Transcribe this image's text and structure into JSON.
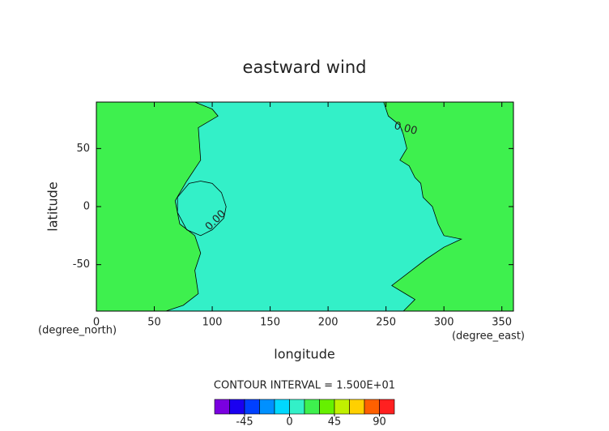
{
  "chart_data": {
    "type": "contour",
    "title": "eastward wind",
    "xlabel": "longitude",
    "ylabel": "latitude",
    "xunits": "(degree_east)",
    "yunits": "(degree_north)",
    "xlim": [
      0,
      360
    ],
    "ylim": [
      -90,
      90
    ],
    "xticks": [
      0,
      50,
      100,
      150,
      200,
      250,
      300,
      350
    ],
    "yticks": [
      -50,
      0,
      50
    ],
    "background_color": "#3ef04e",
    "regions": [
      {
        "color": "#33f0c8",
        "x": [
          85,
          100,
          105,
          88,
          90,
          78,
          68,
          72,
          85,
          90,
          85,
          88,
          75,
          60,
          265,
          275,
          255,
          285,
          300,
          315,
          300,
          295,
          290,
          282,
          280,
          275,
          270,
          262,
          268,
          265,
          262,
          252,
          248
        ],
        "y": [
          90,
          84,
          78,
          68,
          40,
          22,
          5,
          -15,
          -25,
          -40,
          -55,
          -75,
          -85,
          -90,
          -90,
          -80,
          -68,
          -45,
          -35,
          -28,
          -25,
          -15,
          0,
          8,
          20,
          25,
          35,
          40,
          50,
          62,
          70,
          78,
          90
        ]
      }
    ],
    "contour_lines": [
      {
        "x": [
          90,
          80,
          70,
          70,
          78,
          90,
          100,
          110,
          112,
          108,
          100,
          90
        ],
        "y": [
          22,
          20,
          8,
          -5,
          -20,
          -25,
          -20,
          -10,
          0,
          12,
          20,
          22
        ]
      }
    ],
    "contour_labels": [
      {
        "text": "0.00",
        "x": 267,
        "y": 67
      },
      {
        "text": "0.00",
        "x": 103,
        "y": -12
      }
    ],
    "contour_interval": "CONTOUR INTERVAL = 1.500E+01",
    "levels": [
      -75,
      -60,
      -45,
      -30,
      -15,
      0,
      15,
      30,
      45,
      60,
      75,
      90,
      105
    ],
    "level_colors": [
      "#7a00e0",
      "#1a00f0",
      "#0040ff",
      "#0090ff",
      "#00d8ff",
      "#33f0c8",
      "#3ef04e",
      "#66f000",
      "#c0f000",
      "#ffd000",
      "#ff6000",
      "#ff2020"
    ],
    "colorbar_ticks": [
      -45,
      0,
      45,
      90
    ]
  }
}
